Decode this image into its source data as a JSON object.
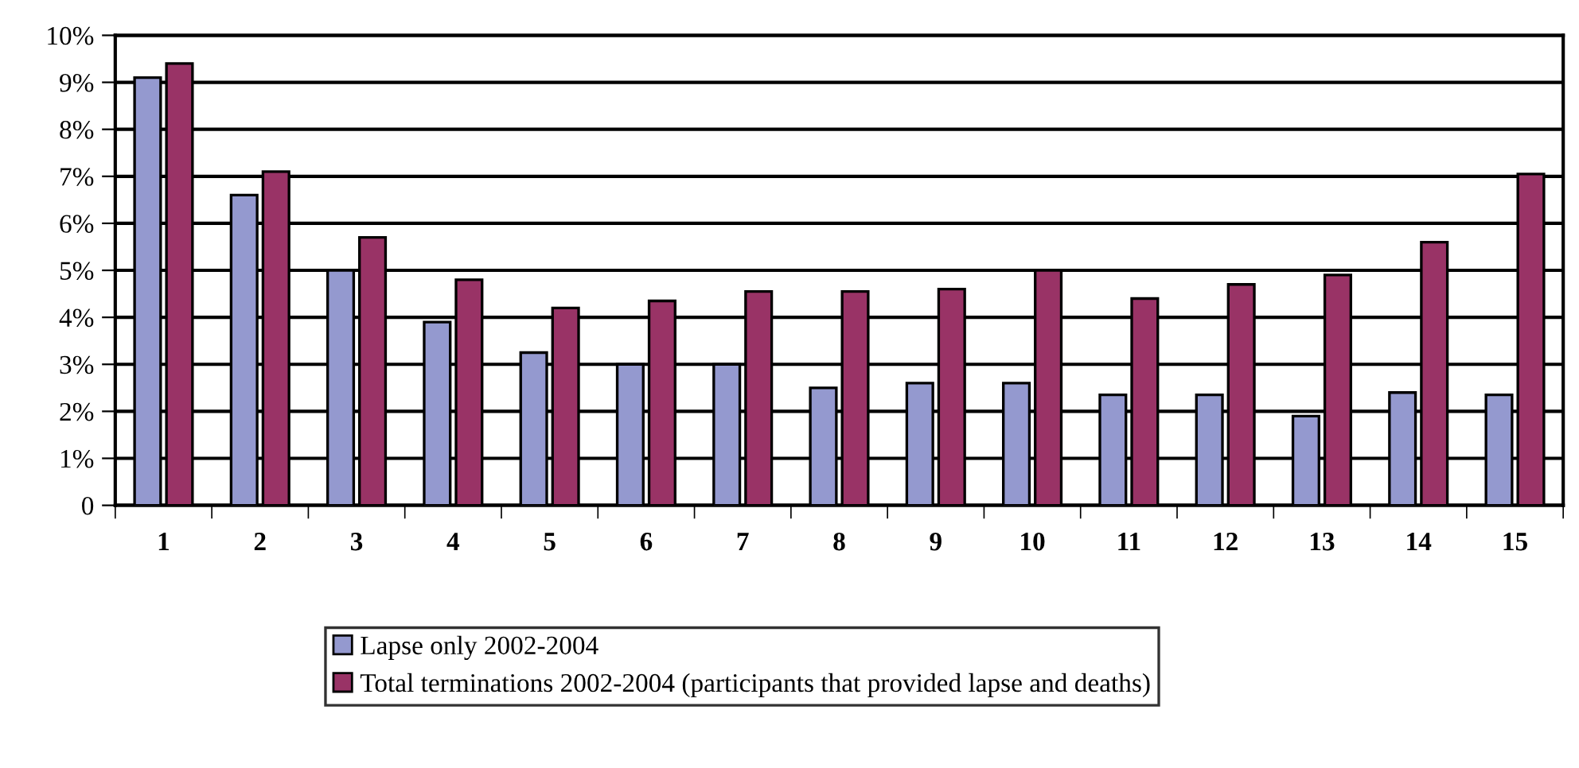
{
  "chart_data": {
    "type": "bar",
    "categories": [
      "1",
      "2",
      "3",
      "4",
      "5",
      "6",
      "7",
      "8",
      "9",
      "10",
      "11",
      "12",
      "13",
      "14",
      "15"
    ],
    "series": [
      {
        "name": "Lapse only 2002-2004",
        "color": "#9499cf",
        "values": [
          9.1,
          6.6,
          5.0,
          3.9,
          3.25,
          3.0,
          3.0,
          2.5,
          2.6,
          2.6,
          2.35,
          2.35,
          1.9,
          2.4,
          2.35
        ]
      },
      {
        "name": "Total terminations 2002-2004 (participants that provided lapse and deaths)",
        "color": "#993366",
        "values": [
          9.4,
          7.1,
          5.7,
          4.8,
          4.2,
          4.35,
          4.55,
          4.55,
          4.6,
          5.0,
          4.4,
          4.7,
          4.9,
          5.6,
          7.05
        ]
      }
    ],
    "ylim": [
      0,
      10
    ],
    "yticks": [
      {
        "value": 0,
        "label": "0"
      },
      {
        "value": 1,
        "label": "1%"
      },
      {
        "value": 2,
        "label": "2%"
      },
      {
        "value": 3,
        "label": "3%"
      },
      {
        "value": 4,
        "label": "4%"
      },
      {
        "value": 5,
        "label": "5%"
      },
      {
        "value": 6,
        "label": "6%"
      },
      {
        "value": 7,
        "label": "7%"
      },
      {
        "value": 8,
        "label": "8%"
      },
      {
        "value": 9,
        "label": "9%"
      },
      {
        "value": 10,
        "label": "10%"
      }
    ],
    "grid": "y",
    "legend": "bottom"
  }
}
